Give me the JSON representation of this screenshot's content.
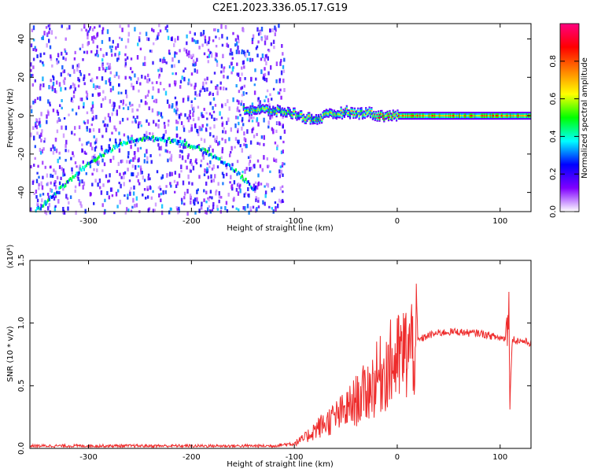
{
  "title": "C2E1.2023.336.05.17.G19",
  "chart_data": [
    {
      "type": "heatmap",
      "xlabel": "Height of straight line (km)",
      "ylabel": "Frequency (Hz)",
      "xlim": [
        -357,
        130
      ],
      "ylim": [
        -50,
        48
      ],
      "x_ticks": [
        -300,
        -200,
        -100,
        0,
        100
      ],
      "x_tick_labels": [
        "-300",
        "-200",
        "-100",
        "0",
        "100"
      ],
      "y_ticks": [
        40,
        20,
        0,
        -20,
        -40
      ],
      "y_tick_labels": [
        "40",
        "20",
        "0",
        "-20",
        "-40"
      ],
      "colorbar": {
        "label": "Normalized spectral amplitude",
        "range": [
          0,
          1
        ],
        "ticks": [
          0.0,
          0.2,
          0.4,
          0.6,
          0.8
        ],
        "tick_labels": [
          "0.0",
          "0.2",
          "0.4",
          "0.6",
          "0.8"
        ],
        "colormap": [
          "#ffffff",
          "#8000ff",
          "#0000ff",
          "#00ffff",
          "#00ff00",
          "#ffff00",
          "#ff8000",
          "#ff0000",
          "#ff0080"
        ]
      },
      "noise_region_x": [
        -357,
        -110
      ],
      "arc_track": {
        "x": [
          -350,
          -340,
          -330,
          -320,
          -310,
          -300,
          -290,
          -280,
          -270,
          -260,
          -250,
          -240,
          -230,
          -220,
          -210,
          -200,
          -190,
          -180,
          -170,
          -160,
          -150,
          -140
        ],
        "y": [
          -49,
          -44,
          -39,
          -34,
          -29,
          -25,
          -21,
          -18,
          -15,
          -13,
          -12,
          -12,
          -12,
          -13,
          -14,
          -16,
          -18,
          -21,
          -24,
          -28,
          -33,
          -38
        ]
      },
      "line_track": {
        "x": [
          -150,
          -130,
          -110,
          -100,
          -90,
          -80,
          -70,
          -60,
          -50,
          -40,
          -30,
          -20,
          -10,
          0,
          20,
          40,
          60,
          80,
          100,
          130
        ],
        "y": [
          3,
          3,
          2,
          1,
          -1,
          -2,
          0,
          1,
          2,
          1,
          2,
          0,
          0,
          0,
          0,
          0,
          0,
          0,
          0,
          0
        ]
      }
    },
    {
      "type": "line",
      "xlabel": "Height of straight line (km)",
      "ylabel": "SNR (10 * v/v)",
      "y_multiplier_label": "(x10⁴)",
      "xlim": [
        -357,
        130
      ],
      "ylim": [
        0,
        1.5
      ],
      "x_ticks": [
        -300,
        -200,
        -100,
        0,
        100
      ],
      "x_tick_labels": [
        "-300",
        "-200",
        "-100",
        "0",
        "100"
      ],
      "y_ticks": [
        0.0,
        0.5,
        1.0,
        1.5
      ],
      "y_tick_labels": [
        "0.0",
        "0.5",
        "1.0",
        "1.5"
      ],
      "series": [
        {
          "color": "#ee2b2b",
          "x": [
            -357,
            -300,
            -200,
            -120,
            -100,
            -90,
            -80,
            -70,
            -60,
            -50,
            -40,
            -30,
            -20,
            -10,
            0,
            10,
            20,
            30,
            40,
            50,
            60,
            70,
            80,
            90,
            100,
            105,
            108,
            110,
            112,
            115,
            120,
            130
          ],
          "y": [
            0.02,
            0.02,
            0.02,
            0.02,
            0.04,
            0.08,
            0.15,
            0.2,
            0.25,
            0.3,
            0.38,
            0.45,
            0.55,
            0.65,
            0.7,
            0.78,
            0.86,
            0.9,
            0.92,
            0.93,
            0.93,
            0.92,
            0.92,
            0.9,
            0.88,
            0.88,
            1.3,
            0.5,
            0.88,
            0.86,
            0.86,
            0.84
          ]
        }
      ]
    }
  ]
}
